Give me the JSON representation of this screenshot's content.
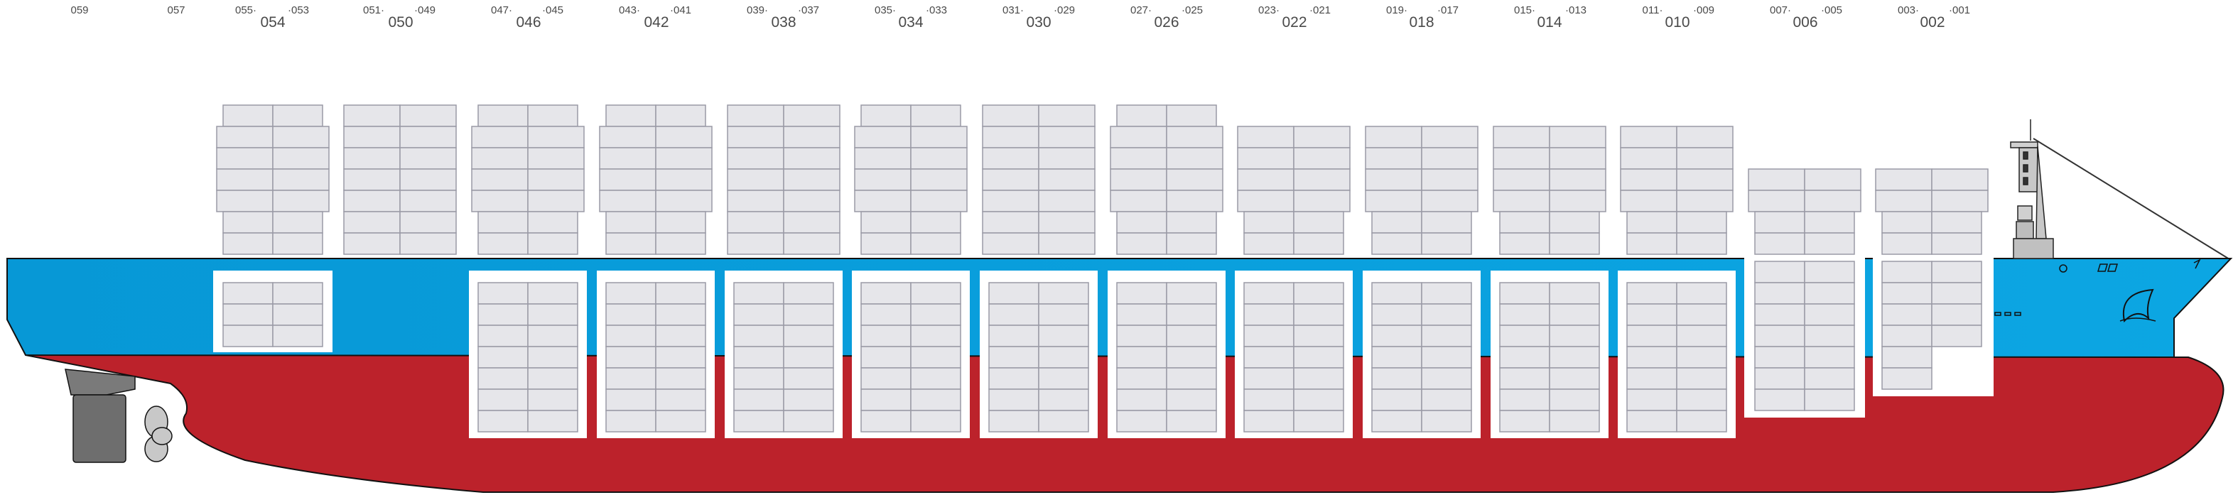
{
  "bay_labels": {
    "odd": [
      {
        "text": "059"
      },
      {
        "text": "057"
      },
      {
        "text": "055·"
      },
      {
        "text": "·053"
      },
      {
        "text": "051·"
      },
      {
        "text": "·049"
      },
      {
        "text": "047·"
      },
      {
        "text": "·045"
      },
      {
        "text": "043·"
      },
      {
        "text": "·041"
      },
      {
        "text": "039·"
      },
      {
        "text": "·037"
      },
      {
        "text": "035·"
      },
      {
        "text": "·033"
      },
      {
        "text": "031·"
      },
      {
        "text": "·029"
      },
      {
        "text": "027·"
      },
      {
        "text": "·025"
      },
      {
        "text": "023·"
      },
      {
        "text": "·021"
      },
      {
        "text": "019·"
      },
      {
        "text": "·017"
      },
      {
        "text": "015·"
      },
      {
        "text": "·013"
      },
      {
        "text": "011·"
      },
      {
        "text": "·009"
      },
      {
        "text": "007·"
      },
      {
        "text": "·005"
      },
      {
        "text": "003·"
      },
      {
        "text": "·001"
      }
    ],
    "even": [
      {
        "text": "054"
      },
      {
        "text": "050"
      },
      {
        "text": "046"
      },
      {
        "text": "042"
      },
      {
        "text": "038"
      },
      {
        "text": "034"
      },
      {
        "text": "030"
      },
      {
        "text": "026"
      },
      {
        "text": "022"
      },
      {
        "text": "018"
      },
      {
        "text": "014"
      },
      {
        "text": "010"
      },
      {
        "text": "006"
      },
      {
        "text": "002"
      }
    ]
  },
  "colors": {
    "hull_red": "#bc222b",
    "hull_blue": "#0ca6e3",
    "container_fill": "#e6e6ea",
    "container_stroke": "#9a9aa6",
    "hold_frame": "#ffffff",
    "rudder": "#6e6e6e",
    "superstructure": "#d0d0d0"
  }
}
